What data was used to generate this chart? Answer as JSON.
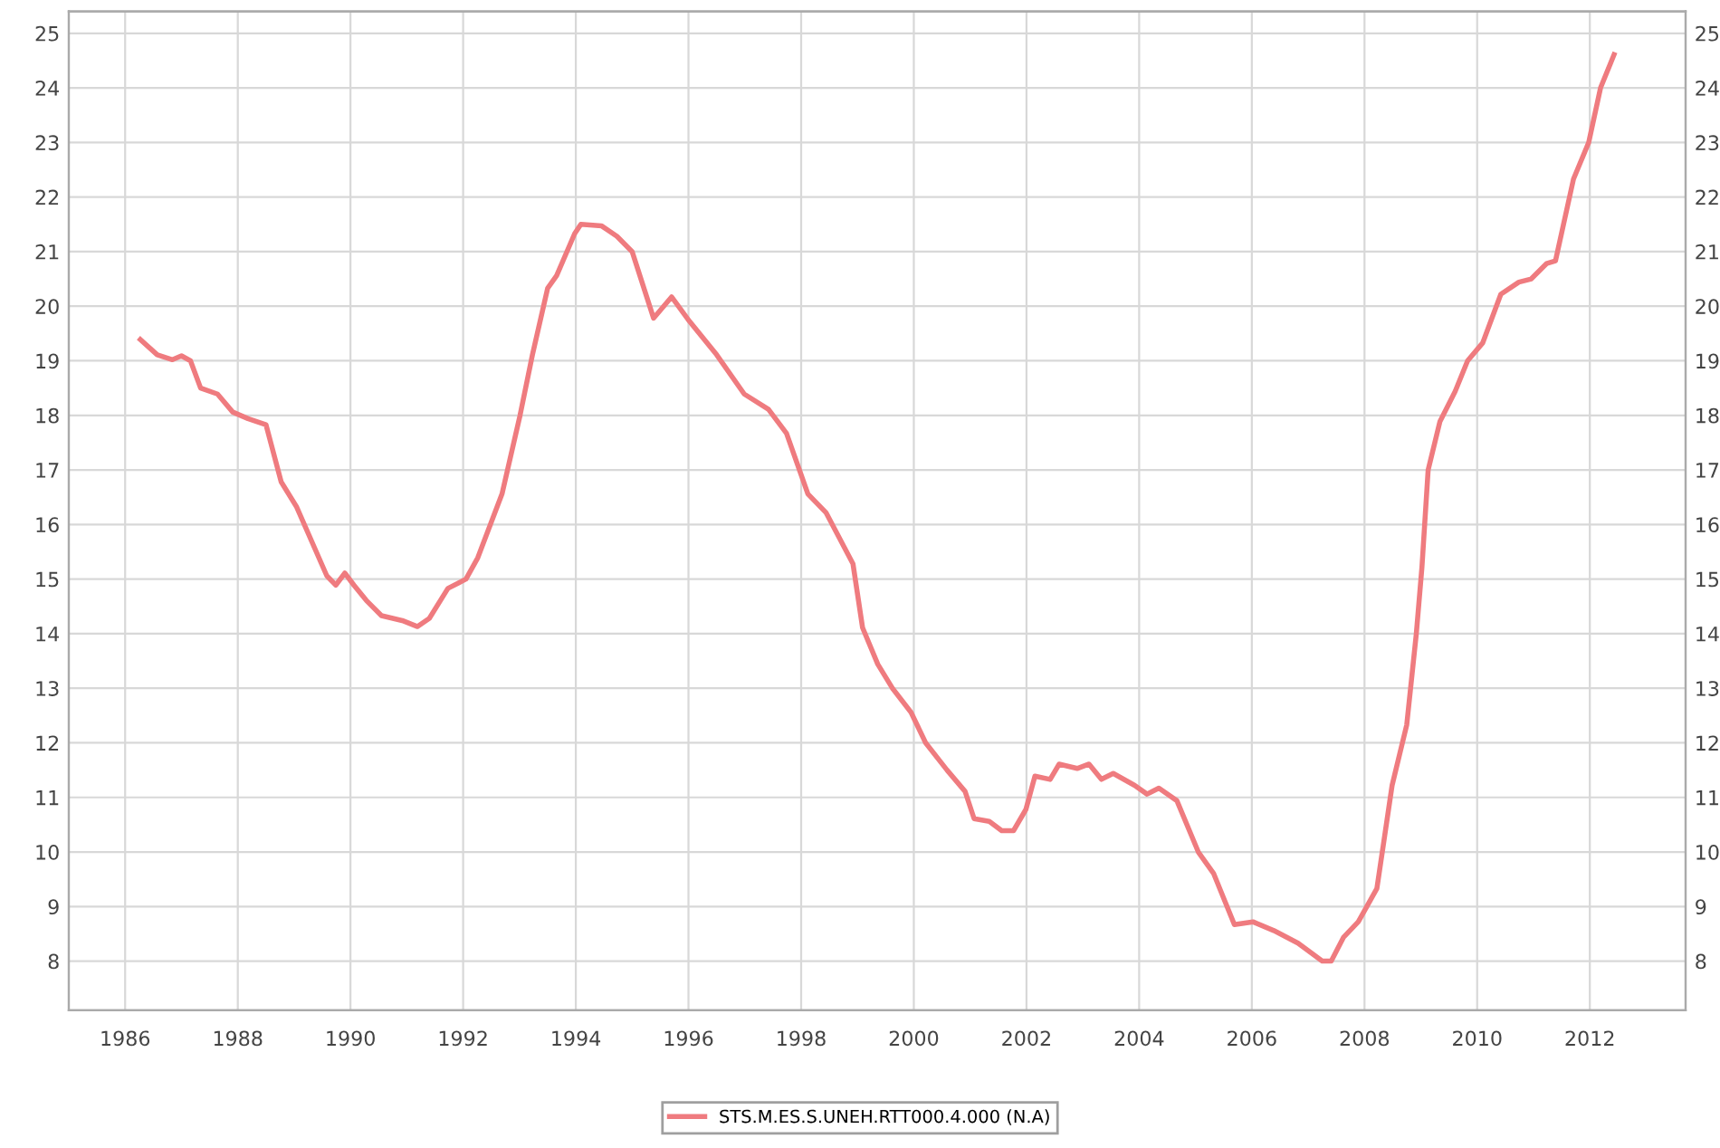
{
  "chart_data": {
    "type": "line",
    "series": [
      {
        "name": "STS.M.ES.S.UNEH.RTT000.4.000 (N.A)",
        "color": "#ef7b7f",
        "x": [
          1986.27,
          1986.57,
          1986.84,
          1987.0,
          1987.16,
          1987.34,
          1987.64,
          1987.91,
          1988.18,
          1988.5,
          1988.77,
          1989.04,
          1989.58,
          1989.74,
          1989.9,
          1990.06,
          1990.28,
          1990.55,
          1990.92,
          1991.19,
          1991.4,
          1991.73,
          1992.05,
          1992.26,
          1992.69,
          1993.01,
          1993.23,
          1993.5,
          1993.66,
          1993.98,
          1994.09,
          1994.46,
          1994.73,
          1995.0,
          1995.38,
          1995.7,
          1996.02,
          1996.5,
          1996.99,
          1997.42,
          1997.74,
          1998.12,
          1998.44,
          1998.92,
          1999.09,
          1999.36,
          1999.62,
          1999.95,
          2000.21,
          2000.59,
          2000.91,
          2001.07,
          2001.34,
          2001.56,
          2001.77,
          2001.99,
          2002.15,
          2002.42,
          2002.58,
          2002.9,
          2003.11,
          2003.33,
          2003.54,
          2003.92,
          2004.14,
          2004.35,
          2004.67,
          2005.05,
          2005.32,
          2005.69,
          2006.02,
          2006.39,
          2006.82,
          2007.25,
          2007.41,
          2007.63,
          2007.89,
          2008.22,
          2008.49,
          2008.75,
          2008.92,
          2009.02,
          2009.13,
          2009.34,
          2009.61,
          2009.83,
          2010.1,
          2010.42,
          2010.74,
          2010.96,
          2011.23,
          2011.39,
          2011.71,
          2011.98,
          2012.19,
          2012.43
        ],
        "values": [
          19.39,
          19.11,
          19.02,
          19.09,
          19.0,
          18.5,
          18.39,
          18.06,
          17.94,
          17.83,
          16.78,
          16.33,
          15.06,
          14.89,
          15.11,
          14.89,
          14.61,
          14.33,
          14.24,
          14.13,
          14.28,
          14.83,
          15.0,
          15.39,
          16.56,
          18.0,
          19.11,
          20.33,
          20.56,
          21.33,
          21.5,
          21.47,
          21.28,
          21.0,
          19.78,
          20.17,
          19.72,
          19.11,
          18.39,
          18.11,
          17.67,
          16.56,
          16.22,
          15.28,
          14.11,
          13.44,
          13.0,
          12.56,
          12.0,
          11.5,
          11.11,
          10.61,
          10.56,
          10.39,
          10.39,
          10.78,
          11.39,
          11.33,
          11.61,
          11.53,
          11.61,
          11.33,
          11.44,
          11.22,
          11.06,
          11.17,
          10.94,
          10.0,
          9.61,
          8.67,
          8.72,
          8.56,
          8.33,
          8.0,
          8.0,
          8.44,
          8.72,
          9.33,
          11.22,
          12.33,
          14.0,
          15.22,
          17.0,
          17.89,
          18.44,
          19.0,
          19.33,
          20.22,
          20.44,
          20.5,
          20.78,
          20.83,
          22.33,
          23.0,
          24.0,
          24.61
        ]
      }
    ],
    "xlim": [
      1985,
      2013.7
    ],
    "xticks": [
      1986,
      1988,
      1990,
      1992,
      1994,
      1996,
      1998,
      2000,
      2002,
      2004,
      2006,
      2008,
      2010,
      2012
    ],
    "ylim": [
      7.1,
      25.4
    ],
    "yticks": [
      8,
      9,
      10,
      11,
      12,
      13,
      14,
      15,
      16,
      17,
      18,
      19,
      20,
      21,
      22,
      23,
      24,
      25
    ],
    "y2lim": [
      7.1,
      25.4
    ],
    "y2ticks": [
      8,
      9,
      10,
      11,
      12,
      13,
      14,
      15,
      16,
      17,
      18,
      19,
      20,
      21,
      22,
      23,
      24,
      25
    ],
    "grid": true,
    "legend": "bottom",
    "line_style": "solid",
    "marker": "none"
  }
}
